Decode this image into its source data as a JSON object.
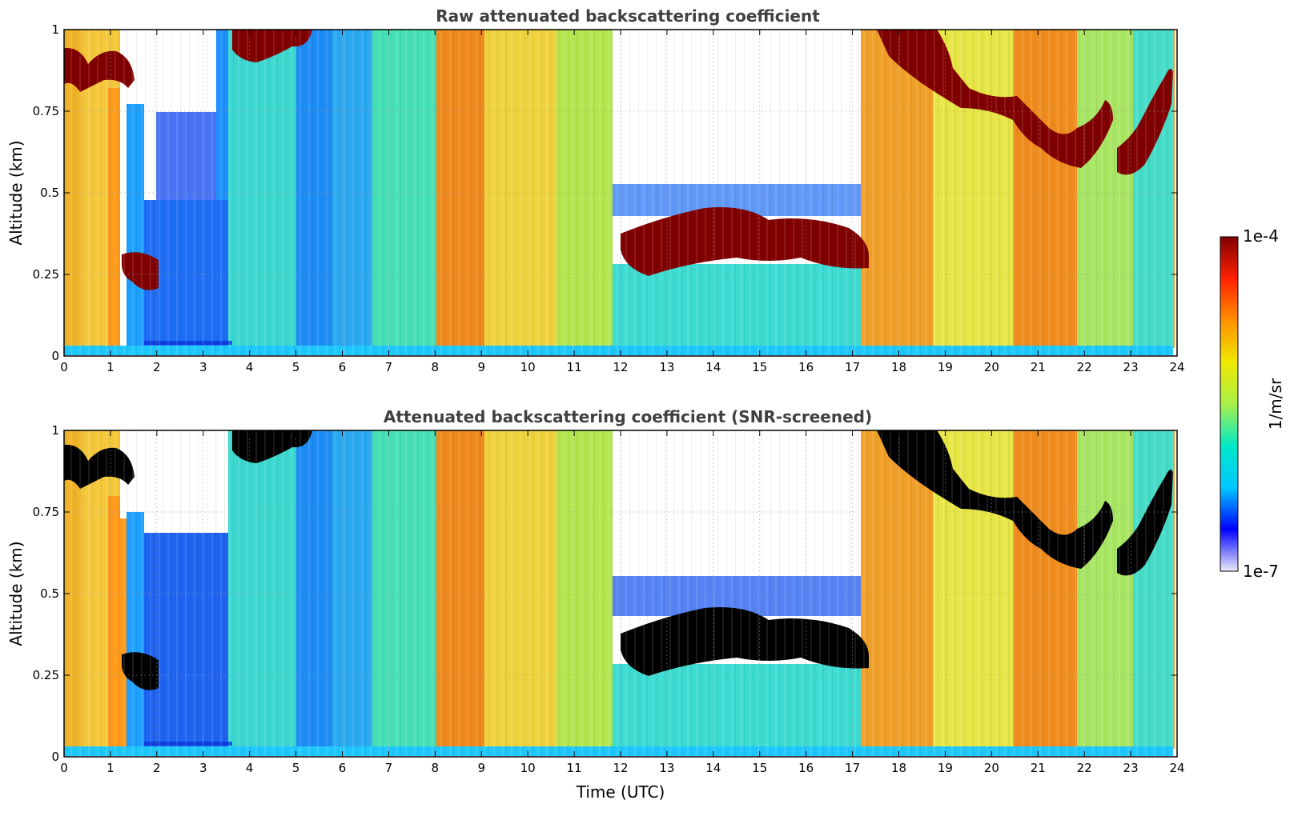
{
  "chart_data": [
    {
      "type": "heatmap",
      "title": "Raw attenuated backscattering coefficient",
      "xlabel": "",
      "ylabel": "Altitude (km)",
      "xlim": [
        0,
        24
      ],
      "ylim": [
        0,
        1
      ],
      "xticks": [
        0,
        1,
        2,
        3,
        4,
        5,
        6,
        7,
        8,
        9,
        10,
        11,
        12,
        13,
        14,
        15,
        16,
        17,
        18,
        19,
        20,
        21,
        22,
        23,
        24
      ],
      "yticks": [
        0,
        0.25,
        0.5,
        0.75,
        1
      ],
      "ytick_labels": [
        "0",
        "0.25",
        "0.5",
        "0.75",
        "1"
      ],
      "grid": true,
      "features": [
        {
          "name": "cloud layer",
          "t_start": 0,
          "t_end": 1.4,
          "alt_start": 0.85,
          "alt_end": 0.95
        },
        {
          "name": "low cloud",
          "t_start": 1.25,
          "t_end": 2.0,
          "alt_start": 0.22,
          "alt_end": 0.3
        },
        {
          "name": "upper cloud",
          "t_start": 3.6,
          "t_end": 5.3,
          "alt_start": 0.88,
          "alt_end": 1.0
        },
        {
          "name": "cloud band",
          "t_start": 11.9,
          "t_end": 17.3,
          "alt_start": 0.27,
          "alt_end": 0.45
        },
        {
          "name": "descending cloud",
          "t_start": 17.5,
          "t_end": 23.7,
          "alt_start": 0.55,
          "alt_end": 1.0
        }
      ]
    },
    {
      "type": "heatmap",
      "title": "Attenuated backscattering coefficient (SNR-screened)",
      "xlabel": "Time (UTC)",
      "ylabel": "Altitude (km)",
      "xlim": [
        0,
        24
      ],
      "ylim": [
        0,
        1
      ],
      "xticks": [
        0,
        1,
        2,
        3,
        4,
        5,
        6,
        7,
        8,
        9,
        10,
        11,
        12,
        13,
        14,
        15,
        16,
        17,
        18,
        19,
        20,
        21,
        22,
        23,
        24
      ],
      "yticks": [
        0,
        0.25,
        0.5,
        0.75,
        1
      ],
      "ytick_labels": [
        "0",
        "0.25",
        "0.5",
        "0.75",
        "1"
      ],
      "grid": true
    }
  ],
  "colorbar": {
    "label": "1/m/sr",
    "max_label": "1e-4",
    "min_label": "1e-7",
    "colors": [
      "#ecebfa",
      "#0000ff",
      "#00c8ff",
      "#00e8c8",
      "#a8f048",
      "#f0e800",
      "#ff9000",
      "#ff2000",
      "#800000"
    ]
  },
  "colors": {
    "title": "#404040",
    "saturated_raw": "#800000",
    "saturated_screened": "#000000",
    "missing": "#ffffff"
  }
}
